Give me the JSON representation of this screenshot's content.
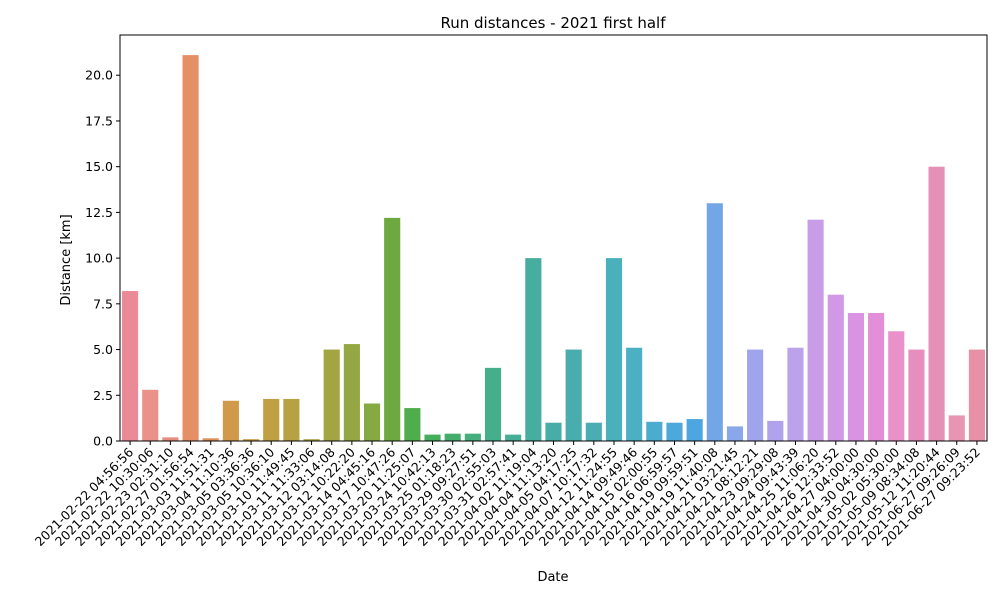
{
  "chart_data": {
    "type": "bar",
    "title": "Run distances - 2021 first half",
    "xlabel": "Date",
    "ylabel": "Distance [km]",
    "ylim": [
      0,
      22.2
    ],
    "yticks": [
      "0.0",
      "2.5",
      "5.0",
      "7.5",
      "10.0",
      "12.5",
      "15.0",
      "17.5",
      "20.0"
    ],
    "grid": false,
    "legend": "none",
    "categories": [
      "2021-02-22 04:56:56",
      "2021-02-22 10:30:06",
      "2021-02-23 02:31:10",
      "2021-02-27 01:56:54",
      "2021-03-03 11:51:31",
      "2021-03-04 11:10:36",
      "2021-03-05 03:36:36",
      "2021-03-05 10:36:10",
      "2021-03-10 11:49:45",
      "2021-03-11 11:33:06",
      "2021-03-12 03:14:08",
      "2021-03-12 10:22:20",
      "2021-03-14 04:45:16",
      "2021-03-17 10:47:26",
      "2021-03-20 11:25:07",
      "2021-03-24 10:42:13",
      "2021-03-25 01:18:23",
      "2021-03-29 09:27:51",
      "2021-03-30 02:55:03",
      "2021-03-31 02:57:41",
      "2021-04-02 11:19:04",
      "2021-04-04 11:13:20",
      "2021-04-05 04:17:25",
      "2021-04-07 10:17:32",
      "2021-04-12 11:24:55",
      "2021-04-14 09:49:46",
      "2021-04-15 02:00:55",
      "2021-04-16 06:59:57",
      "2021-04-19 09:59:51",
      "2021-04-19 11:40:08",
      "2021-04-21 03:21:45",
      "2021-04-21 08:12:21",
      "2021-04-23 09:29:08",
      "2021-04-24 09:43:39",
      "2021-04-25 11:06:20",
      "2021-04-26 12:33:52",
      "2021-04-27 04:00:00",
      "2021-04-30 04:30:00",
      "2021-05-02 05:30:00",
      "2021-05-09 08:34:08",
      "2021-05-12 11:20:44",
      "2021-06-27 09:26:09",
      "2021-06-27 09:23:52"
    ],
    "values": [
      8.2,
      2.8,
      0.2,
      21.1,
      0.15,
      2.2,
      0.1,
      2.3,
      2.3,
      0.1,
      5.0,
      5.3,
      2.05,
      12.2,
      1.8,
      0.35,
      0.4,
      0.4,
      4.0,
      0.35,
      10.0,
      1.0,
      5.0,
      1.0,
      10.0,
      5.1,
      1.05,
      1.0,
      1.2,
      13.0,
      0.8,
      5.0,
      1.1,
      5.1,
      12.1,
      8.0,
      7.0,
      7.0,
      6.0,
      5.0,
      15.0,
      1.4,
      5.0
    ],
    "colors": [
      "#e98a96",
      "#e9928a",
      "#e68c80",
      "#e48f66",
      "#dc925a",
      "#d19a4a",
      "#c99c44",
      "#c19f43",
      "#b8a143",
      "#aea443",
      "#a3a442",
      "#95a742",
      "#85aa42",
      "#6ea840",
      "#4fad4c",
      "#43ae5c",
      "#43ae6c",
      "#44ae7c",
      "#45ae8a",
      "#46ae96",
      "#47ad9f",
      "#48ada7",
      "#49adad",
      "#4aadb4",
      "#4ab0bb",
      "#4bb0c4",
      "#4cacd0",
      "#4da9d9",
      "#4ea6e0",
      "#72a6e6",
      "#8aa7ea",
      "#a0a4ec",
      "#b0a3ec",
      "#bca2ea",
      "#c99ce8",
      "#d198e6",
      "#da93e2",
      "#e38ed8",
      "#e891cb",
      "#e68fbe",
      "#e590b6",
      "#e895b3",
      "#e691a8"
    ]
  }
}
